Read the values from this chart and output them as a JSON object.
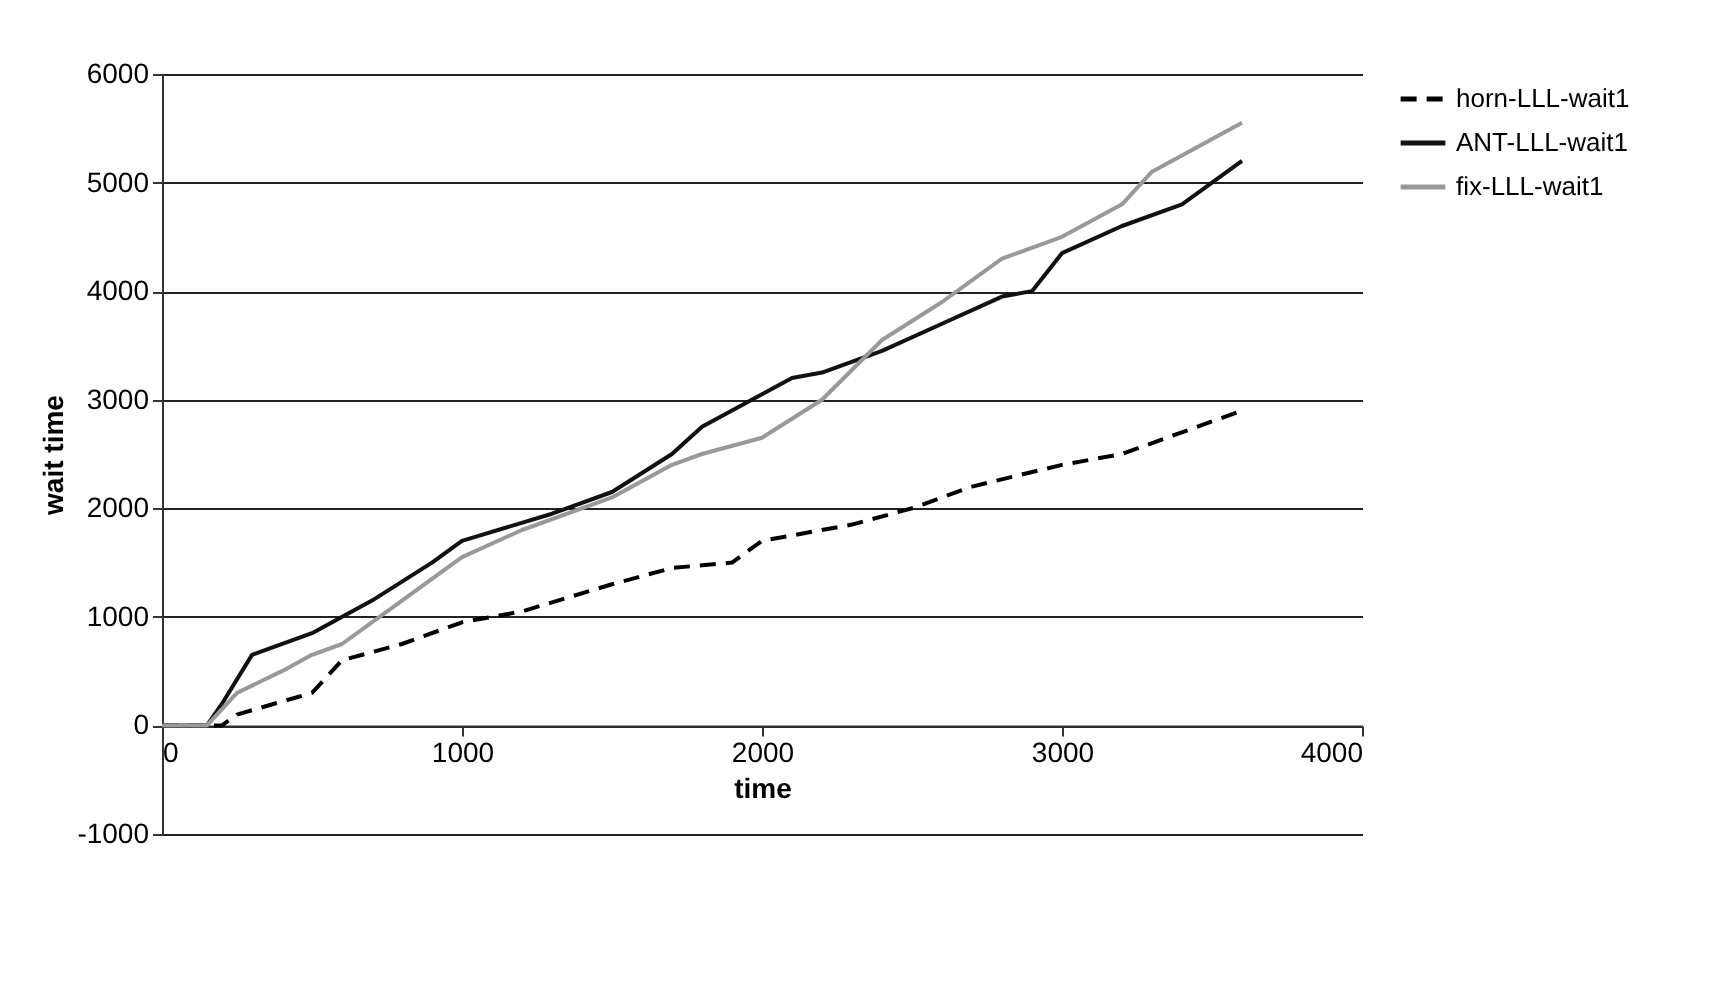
{
  "chart_data": {
    "type": "line",
    "xlabel": "time",
    "ylabel": "wait time",
    "xlim": [
      0,
      4000
    ],
    "xticks": [
      0,
      1000,
      2000,
      3000,
      4000
    ],
    "ylim": [
      -1000,
      6000
    ],
    "yticks": [
      -1000,
      0,
      1000,
      2000,
      3000,
      4000,
      5000,
      6000
    ],
    "grid": "y",
    "legend": "right",
    "marker": "none",
    "series": [
      {
        "name": "horn-LLL-wait1",
        "color": "#000000",
        "line_style": "dashed",
        "x": [
          0,
          200,
          250,
          500,
          600,
          800,
          1000,
          1200,
          1500,
          1700,
          1900,
          2000,
          2300,
          2500,
          2700,
          3000,
          3200,
          3500,
          3600
        ],
        "values": [
          0,
          0,
          100,
          300,
          600,
          750,
          950,
          1050,
          1300,
          1450,
          1500,
          1700,
          1850,
          2000,
          2200,
          2400,
          2500,
          2800,
          2900
        ]
      },
      {
        "name": "ANT-LLL-wait1",
        "color": "#111111",
        "line_style": "solid",
        "x": [
          0,
          150,
          200,
          300,
          500,
          700,
          900,
          1000,
          1300,
          1500,
          1700,
          1800,
          2000,
          2100,
          2200,
          2400,
          2600,
          2800,
          2900,
          3000,
          3200,
          3400,
          3600
        ],
        "values": [
          0,
          0,
          200,
          650,
          850,
          1150,
          1500,
          1700,
          1950,
          2150,
          2500,
          2750,
          3050,
          3200,
          3250,
          3450,
          3700,
          3950,
          4000,
          4350,
          4600,
          4800,
          5200
        ]
      },
      {
        "name": "fix-LLL-wait1",
        "color": "#999999",
        "line_style": "solid",
        "x": [
          0,
          150,
          250,
          400,
          500,
          600,
          800,
          1000,
          1200,
          1500,
          1700,
          1800,
          2000,
          2200,
          2400,
          2600,
          2800,
          3000,
          3200,
          3300,
          3600
        ],
        "values": [
          0,
          0,
          300,
          500,
          650,
          750,
          1150,
          1550,
          1800,
          2100,
          2400,
          2500,
          2650,
          3000,
          3550,
          3900,
          4300,
          4500,
          4800,
          5100,
          5550
        ]
      }
    ]
  }
}
